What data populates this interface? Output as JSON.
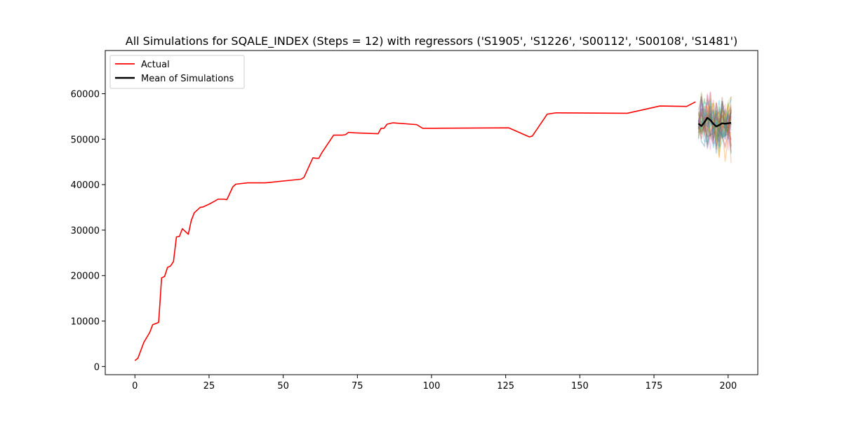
{
  "chart_data": {
    "type": "line",
    "title": "All Simulations for SQALE_INDEX (Steps = 12) with regressors ('S1905', 'S1226', 'S00112', 'S00108', 'S1481')",
    "xlabel": "",
    "ylabel": "",
    "xlim": [
      -10,
      210
    ],
    "ylim": [
      -1800,
      69500
    ],
    "x_ticks": [
      0,
      25,
      50,
      75,
      100,
      125,
      150,
      175,
      200
    ],
    "y_ticks": [
      0,
      10000,
      20000,
      30000,
      40000,
      50000,
      60000
    ],
    "grid": false,
    "legend_position": "top-left",
    "series": [
      {
        "name": "Actual",
        "color": "#ff0000",
        "x": [
          0,
          1,
          3,
          5,
          6,
          8,
          9,
          10,
          11,
          12,
          13,
          14,
          15,
          16,
          18,
          19,
          20,
          21,
          22,
          23,
          25,
          27,
          28,
          30,
          31,
          33,
          34,
          38,
          44,
          56,
          57,
          60,
          61,
          62,
          63,
          67,
          70,
          71,
          72,
          74,
          82,
          83,
          84,
          85,
          87,
          95,
          97,
          100,
          126,
          133,
          134,
          139,
          142,
          166,
          177,
          186,
          189
        ],
        "y": [
          1300,
          1800,
          5300,
          7500,
          9200,
          9700,
          19500,
          19800,
          21800,
          22100,
          23100,
          28500,
          28600,
          30300,
          29100,
          32100,
          33800,
          34400,
          35000,
          35100,
          35700,
          36400,
          36800,
          36800,
          36700,
          39500,
          40100,
          40400,
          40400,
          41200,
          41600,
          45900,
          45800,
          45800,
          47000,
          50900,
          50900,
          51000,
          51500,
          51400,
          51200,
          52400,
          52400,
          53300,
          53600,
          53200,
          52400,
          52400,
          52500,
          50500,
          50700,
          55500,
          55800,
          55700,
          57300,
          57200,
          58200
        ]
      },
      {
        "name": "Mean of Simulations",
        "color": "#000000",
        "x": [
          190,
          191,
          192,
          193,
          194,
          195,
          196,
          197,
          198,
          199,
          200,
          201
        ],
        "y": [
          53400,
          52900,
          53700,
          54700,
          54200,
          53400,
          52800,
          53100,
          53500,
          53400,
          53500,
          53600
        ]
      }
    ],
    "simulations": {
      "x": [
        190,
        191,
        192,
        193,
        194,
        195,
        196,
        197,
        198,
        199,
        200,
        201
      ],
      "colors": [
        "#1f77b4",
        "#ff7f0e",
        "#2ca02c",
        "#d62728",
        "#9467bd",
        "#8c564b",
        "#e377c2",
        "#7f7f7f",
        "#bcbd22",
        "#17becf"
      ],
      "y_min": [
        48000,
        47100,
        46700,
        46200,
        45600,
        45500,
        45100,
        44500,
        45100,
        44600,
        44100,
        43300
      ],
      "y_max": [
        57800,
        63300,
        59600,
        61400,
        62200,
        61800,
        60200,
        60900,
        66400,
        60600,
        61800,
        63600
      ],
      "count": 40
    }
  }
}
